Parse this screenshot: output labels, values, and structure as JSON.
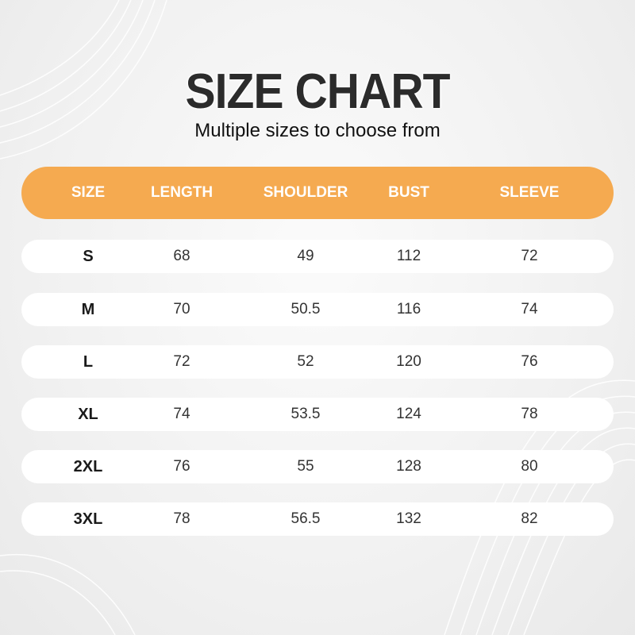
{
  "title": "SIZE CHART",
  "subtitle": "Multiple sizes to choose from",
  "colors": {
    "header": "#f5aa50",
    "row": "#ffffff",
    "text": "#333333"
  },
  "table": {
    "headers": [
      "SIZE",
      "LENGTH",
      "SHOULDER",
      "BUST",
      "SLEEVE"
    ],
    "rows": [
      [
        "S",
        "68",
        "49",
        "112",
        "72"
      ],
      [
        "M",
        "70",
        "50.5",
        "116",
        "74"
      ],
      [
        "L",
        "72",
        "52",
        "120",
        "76"
      ],
      [
        "XL",
        "74",
        "53.5",
        "124",
        "78"
      ],
      [
        "2XL",
        "76",
        "55",
        "128",
        "80"
      ],
      [
        "3XL",
        "78",
        "56.5",
        "132",
        "82"
      ]
    ]
  }
}
